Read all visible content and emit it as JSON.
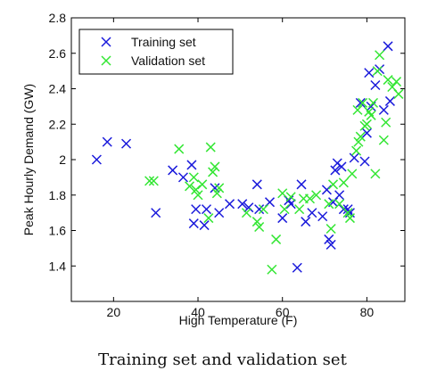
{
  "caption": "Training set and validation set",
  "chart_data": {
    "type": "scatter",
    "xlabel": "High Temperature (F)",
    "ylabel": "Peak Hourly Demand (GW)",
    "xlim": [
      10,
      89
    ],
    "ylim": [
      1.2,
      2.8
    ],
    "xticks": [
      20,
      40,
      60,
      80
    ],
    "yticks": [
      1.4,
      1.6,
      1.8,
      2.0,
      2.2,
      2.4,
      2.6,
      2.8
    ],
    "xtick_labels": [
      "20",
      "40",
      "60",
      "80"
    ],
    "ytick_labels": [
      "1.4",
      "1.6",
      "1.8",
      "2",
      "2.2",
      "2.4",
      "2.6",
      "2.8"
    ],
    "marker": "x",
    "grid": false,
    "legend_position": "top-left",
    "series": [
      {
        "name": "Training set",
        "color": "#1a1adb",
        "points": [
          [
            16,
            2.0
          ],
          [
            18.5,
            2.1
          ],
          [
            23,
            2.09
          ],
          [
            30,
            1.7
          ],
          [
            34,
            1.94
          ],
          [
            36.5,
            1.9
          ],
          [
            38.5,
            1.97
          ],
          [
            39,
            1.64
          ],
          [
            39.5,
            1.72
          ],
          [
            41.5,
            1.63
          ],
          [
            42,
            1.72
          ],
          [
            44,
            1.84
          ],
          [
            45,
            1.7
          ],
          [
            47.5,
            1.75
          ],
          [
            50.5,
            1.75
          ],
          [
            52,
            1.73
          ],
          [
            54,
            1.86
          ],
          [
            54.5,
            1.72
          ],
          [
            57,
            1.76
          ],
          [
            60,
            1.67
          ],
          [
            61.5,
            1.77
          ],
          [
            62,
            1.75
          ],
          [
            63.5,
            1.39
          ],
          [
            64.5,
            1.86
          ],
          [
            65.5,
            1.65
          ],
          [
            67,
            1.7
          ],
          [
            69.5,
            1.68
          ],
          [
            70.5,
            1.83
          ],
          [
            71,
            1.55
          ],
          [
            71.5,
            1.52
          ],
          [
            72,
            1.76
          ],
          [
            72.5,
            1.94
          ],
          [
            73,
            1.98
          ],
          [
            73.5,
            1.8
          ],
          [
            74,
            1.96
          ],
          [
            74.5,
            1.72
          ],
          [
            75.5,
            1.72
          ],
          [
            76,
            1.7
          ],
          [
            77,
            2.01
          ],
          [
            78.5,
            2.32
          ],
          [
            79.5,
            1.99
          ],
          [
            80,
            2.15
          ],
          [
            80.5,
            2.49
          ],
          [
            81,
            2.3
          ],
          [
            82,
            2.42
          ],
          [
            83,
            2.51
          ],
          [
            84,
            2.28
          ],
          [
            85,
            2.64
          ],
          [
            85.5,
            2.33
          ]
        ]
      },
      {
        "name": "Validation set",
        "color": "#33e633",
        "points": [
          [
            28.5,
            1.88
          ],
          [
            29.5,
            1.88
          ],
          [
            35.5,
            2.06
          ],
          [
            38,
            1.85
          ],
          [
            39,
            1.9
          ],
          [
            39.5,
            1.83
          ],
          [
            40,
            1.8
          ],
          [
            41,
            1.86
          ],
          [
            42.5,
            1.67
          ],
          [
            43,
            2.07
          ],
          [
            43.5,
            1.93
          ],
          [
            44,
            1.96
          ],
          [
            44.5,
            1.81
          ],
          [
            45,
            1.84
          ],
          [
            51.5,
            1.7
          ],
          [
            54,
            1.65
          ],
          [
            54.5,
            1.62
          ],
          [
            55.5,
            1.72
          ],
          [
            57.5,
            1.38
          ],
          [
            58.5,
            1.55
          ],
          [
            60,
            1.81
          ],
          [
            60.5,
            1.72
          ],
          [
            62,
            1.79
          ],
          [
            64,
            1.72
          ],
          [
            65,
            1.78
          ],
          [
            66.5,
            1.78
          ],
          [
            68,
            1.8
          ],
          [
            71,
            1.75
          ],
          [
            71.5,
            1.61
          ],
          [
            72,
            1.86
          ],
          [
            73.5,
            1.75
          ],
          [
            74.5,
            1.87
          ],
          [
            75.5,
            1.7
          ],
          [
            76,
            1.67
          ],
          [
            76.5,
            1.92
          ],
          [
            77.5,
            2.05
          ],
          [
            77.8,
            2.28
          ],
          [
            78,
            2.1
          ],
          [
            78.5,
            2.13
          ],
          [
            79,
            2.32
          ],
          [
            79.5,
            2.19
          ],
          [
            80,
            2.2
          ],
          [
            80.5,
            2.27
          ],
          [
            81,
            2.25
          ],
          [
            81.5,
            2.32
          ],
          [
            82,
            1.92
          ],
          [
            82.5,
            2.5
          ],
          [
            83,
            2.59
          ],
          [
            84,
            2.11
          ],
          [
            84.5,
            2.21
          ],
          [
            85,
            2.45
          ],
          [
            86,
            2.41
          ],
          [
            87,
            2.44
          ],
          [
            87.5,
            2.37
          ]
        ]
      }
    ]
  }
}
